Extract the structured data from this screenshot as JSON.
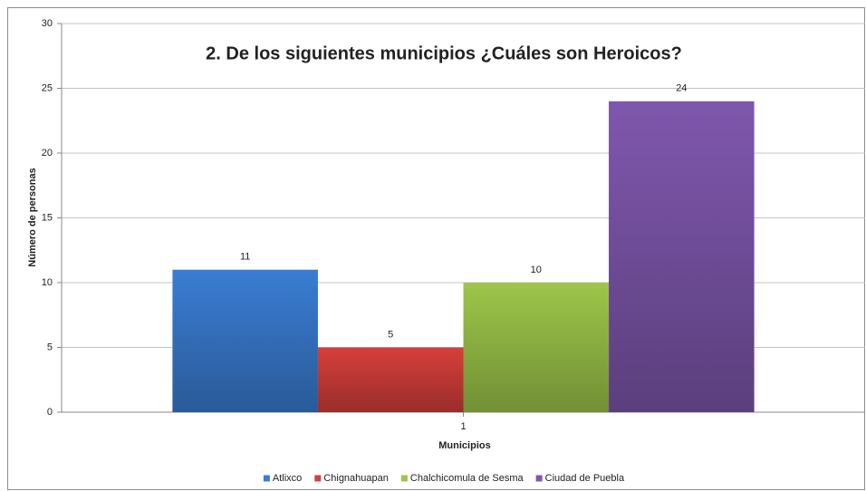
{
  "chart_data": {
    "type": "bar",
    "title": "2. De los siguientes municipios ¿Cuáles son Heroicos?",
    "x_label": "Municipios",
    "y_label": "Número de personas",
    "categories": [
      "1"
    ],
    "series": [
      {
        "name": "Atlixco",
        "color": "#3a7dd3",
        "values": [
          11
        ]
      },
      {
        "name": "Chignahuapan",
        "color": "#d63f3b",
        "values": [
          5
        ]
      },
      {
        "name": "Chalchicomula de Sesma",
        "color": "#9dc64a",
        "values": [
          10
        ]
      },
      {
        "name": "Ciudad de Puebla",
        "color": "#7f57ad",
        "values": [
          24
        ]
      }
    ],
    "ylim": [
      0,
      30
    ],
    "yticks": [
      0,
      5,
      10,
      15,
      20,
      25,
      30
    ],
    "grid": true,
    "legend": "bottom"
  }
}
